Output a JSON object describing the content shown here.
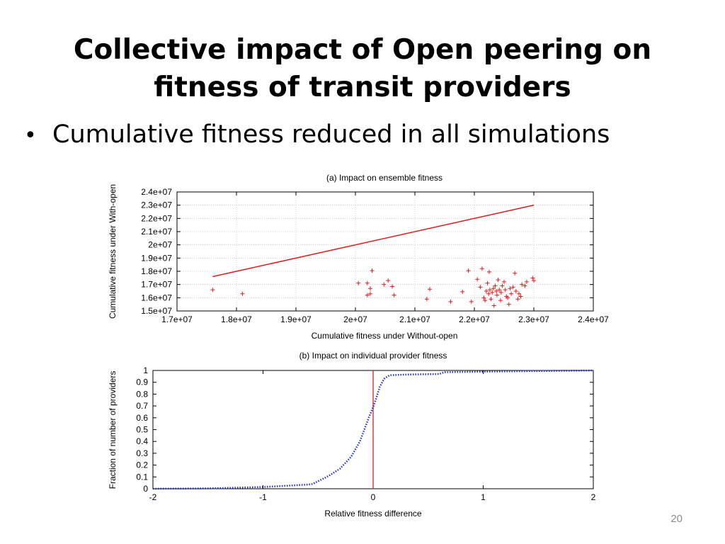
{
  "slide": {
    "title_lines": [
      "Collective impact of Open peering on",
      "fitness of transit providers"
    ],
    "bullet": "Cumulative fitness reduced in all simulations",
    "bullet_marker": "•",
    "page_number": "20"
  },
  "colors": {
    "red": "#e31a1c",
    "blue": "#1f2fd0",
    "frame": "#000000",
    "grid": "#aaaaaa"
  },
  "chart_data": [
    {
      "type": "scatter",
      "title": "(a) Impact on ensemble fitness",
      "xlabel": "Cumulative fitness under Without-open",
      "ylabel": "Cumulative fitness under With-open",
      "xlim": [
        17000000,
        24000000
      ],
      "ylim": [
        15000000,
        24000000
      ],
      "xticks": [
        17000000,
        18000000,
        19000000,
        20000000,
        21000000,
        22000000,
        23000000,
        24000000
      ],
      "xtick_labels": [
        "1.7e+07",
        "1.8e+07",
        "1.9e+07",
        "2e+07",
        "2.1e+07",
        "2.2e+07",
        "2.3e+07",
        "2.4e+07"
      ],
      "yticks": [
        15000000,
        16000000,
        17000000,
        18000000,
        19000000,
        20000000,
        21000000,
        22000000,
        23000000,
        24000000
      ],
      "ytick_labels": [
        "1.5e+07",
        "1.6e+07",
        "1.7e+07",
        "1.8e+07",
        "1.9e+07",
        "2e+07",
        "2.1e+07",
        "2.2e+07",
        "2.3e+07",
        "2.4e+07"
      ],
      "grid": true,
      "reference_line": {
        "x": [
          17600000,
          23000000
        ],
        "y": [
          17600000,
          23000000
        ]
      },
      "marker": "+",
      "points": [
        [
          17600000,
          16600000
        ],
        [
          18100000,
          16300000
        ],
        [
          20050000,
          17100000
        ],
        [
          20200000,
          17100000
        ],
        [
          20250000,
          16700000
        ],
        [
          20200000,
          16200000
        ],
        [
          20250000,
          16300000
        ],
        [
          20280000,
          18050000
        ],
        [
          20480000,
          17000000
        ],
        [
          20550000,
          17300000
        ],
        [
          20620000,
          16850000
        ],
        [
          20650000,
          16200000
        ],
        [
          21200000,
          15900000
        ],
        [
          21250000,
          16650000
        ],
        [
          21600000,
          15700000
        ],
        [
          21800000,
          16450000
        ],
        [
          21900000,
          18050000
        ],
        [
          21950000,
          15700000
        ],
        [
          22050000,
          17400000
        ],
        [
          22100000,
          16800000
        ],
        [
          22130000,
          18200000
        ],
        [
          22160000,
          16000000
        ],
        [
          22180000,
          15800000
        ],
        [
          22200000,
          16500000
        ],
        [
          22220000,
          17100000
        ],
        [
          22240000,
          16300000
        ],
        [
          22250000,
          17950000
        ],
        [
          22260000,
          16600000
        ],
        [
          22280000,
          15900000
        ],
        [
          22300000,
          16400000
        ],
        [
          22320000,
          16700000
        ],
        [
          22330000,
          15400000
        ],
        [
          22350000,
          16900000
        ],
        [
          22370000,
          16500000
        ],
        [
          22380000,
          16200000
        ],
        [
          22400000,
          17350000
        ],
        [
          22420000,
          16600000
        ],
        [
          22440000,
          15800000
        ],
        [
          22450000,
          16400000
        ],
        [
          22470000,
          16900000
        ],
        [
          22500000,
          17200000
        ],
        [
          22520000,
          16600000
        ],
        [
          22540000,
          16100000
        ],
        [
          22560000,
          16000000
        ],
        [
          22580000,
          15500000
        ],
        [
          22600000,
          16700000
        ],
        [
          22620000,
          16300000
        ],
        [
          22650000,
          16800000
        ],
        [
          22680000,
          17850000
        ],
        [
          22700000,
          16500000
        ],
        [
          22730000,
          15900000
        ],
        [
          22750000,
          16300000
        ],
        [
          22780000,
          16100000
        ],
        [
          22800000,
          17000000
        ],
        [
          22850000,
          16900000
        ],
        [
          22980000,
          17500000
        ],
        [
          23000000,
          17300000
        ],
        [
          22880000,
          17200000
        ]
      ]
    },
    {
      "type": "line",
      "title": "(b) Impact on individual provider fitness",
      "xlabel": "Relative fitness difference",
      "ylabel": "Fraction of number of providers",
      "xlim": [
        -2,
        2
      ],
      "ylim": [
        0,
        1
      ],
      "xticks": [
        -2,
        -1,
        0,
        1,
        2
      ],
      "xtick_labels": [
        "-2",
        "-1",
        "0",
        "1",
        "2"
      ],
      "yticks": [
        0,
        0.1,
        0.2,
        0.3,
        0.4,
        0.5,
        0.6,
        0.7,
        0.8,
        0.9,
        1
      ],
      "ytick_labels": [
        "0",
        "0.1",
        "0.2",
        "0.3",
        "0.4",
        "0.5",
        "0.6",
        "0.7",
        "0.8",
        "0.9",
        "1"
      ],
      "grid": false,
      "vertical_line_x": 0,
      "series": [
        {
          "style": "dotted",
          "x": [
            -2,
            -1.5,
            -1.0,
            -0.6,
            -0.55,
            -0.4,
            -0.3,
            -0.2,
            -0.12,
            -0.08,
            -0.04,
            0,
            0.03,
            0.06,
            0.1,
            0.15,
            0.3,
            0.6,
            0.65,
            1.0,
            1.5,
            2
          ],
          "y": [
            0.0,
            0.003,
            0.015,
            0.035,
            0.04,
            0.11,
            0.17,
            0.27,
            0.4,
            0.5,
            0.6,
            0.69,
            0.77,
            0.86,
            0.93,
            0.96,
            0.965,
            0.97,
            0.985,
            0.99,
            0.995,
            1.0
          ]
        }
      ]
    }
  ]
}
